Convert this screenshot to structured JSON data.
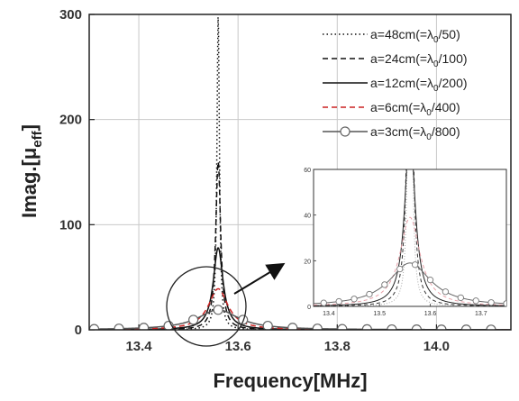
{
  "chart_data": {
    "type": "line",
    "xlabel": "Frequency[MHz]",
    "ylabel_main": "Imag.[μ",
    "ylabel_sub": "eff",
    "ylabel_close": "]",
    "xlim": [
      13.3,
      14.15
    ],
    "ylim": [
      0,
      300
    ],
    "x_ticks": [
      13.4,
      13.6,
      13.8,
      14.0
    ],
    "x_tick_labels": [
      "13.4",
      "13.6",
      "13.8",
      "14.0"
    ],
    "y_ticks": [
      0,
      100,
      200,
      300
    ],
    "y_tick_labels": [
      "0",
      "100",
      "200",
      "300"
    ],
    "grid": true,
    "legend_position": "top-right",
    "resonance_center": 13.56,
    "series": [
      {
        "prefix": "a=48cm(=λ",
        "sub": "0",
        "suffix": "/50)",
        "peak": 300,
        "width": 0.003,
        "style": "dotted",
        "color": "#111111",
        "marker": false
      },
      {
        "prefix": "a=24cm(=λ",
        "sub": "0",
        "suffix": "/100)",
        "peak": 160,
        "width": 0.006,
        "style": "dashed",
        "color": "#111111",
        "marker": false
      },
      {
        "prefix": "a=12cm(=λ",
        "sub": "0",
        "suffix": "/200)",
        "peak": 78,
        "width": 0.012,
        "style": "solid",
        "color": "#111111",
        "marker": false
      },
      {
        "prefix": "a=6cm(=λ",
        "sub": "0",
        "suffix": "/400)",
        "peak": 39,
        "width": 0.024,
        "style": "dashed",
        "color": "#cc2222",
        "marker": false
      },
      {
        "prefix": "a=3cm(=λ",
        "sub": "0",
        "suffix": "/800)",
        "peak": 19,
        "width": 0.05,
        "style": "solid",
        "color": "#555555",
        "marker": true
      }
    ],
    "inset": {
      "xlim": [
        13.37,
        13.75
      ],
      "ylim": [
        0,
        60
      ],
      "x_ticks": [
        13.4,
        13.5,
        13.6,
        13.7
      ],
      "x_tick_labels": [
        "13.4",
        "13.5",
        "13.6",
        "13.7"
      ],
      "y_ticks": [
        0,
        20,
        40,
        60
      ],
      "y_tick_labels": [
        "0",
        "20",
        "40",
        "60"
      ],
      "series_colors": [
        "#aaaaaa",
        "#333333",
        "#222222",
        "#e8a0a8",
        "#666666"
      ]
    }
  }
}
